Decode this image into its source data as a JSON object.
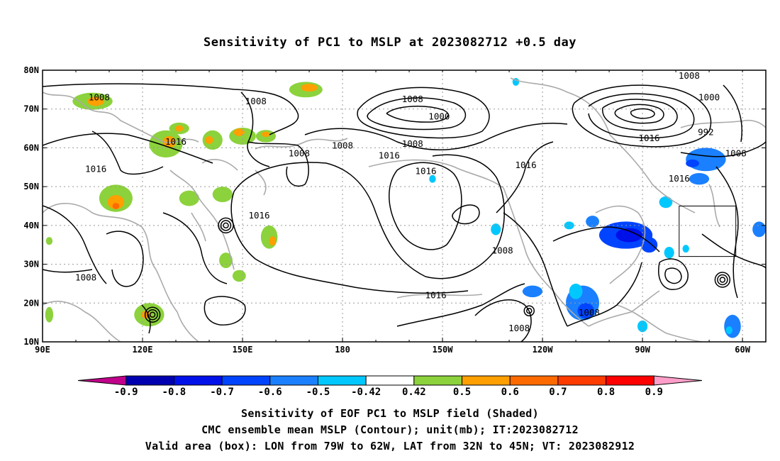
{
  "title": "Sensitivity of PC1 to MSLP at 2023082712 +0.5 day",
  "map": {
    "projection": "cylindrical equidistant",
    "lon_range": [
      90,
      307
    ],
    "lat_range": [
      10,
      80
    ],
    "gridlines": "dotted",
    "lat_ticks": [
      {
        "value": 80,
        "label": "80N"
      },
      {
        "value": 70,
        "label": "70N"
      },
      {
        "value": 60,
        "label": "60N"
      },
      {
        "value": 50,
        "label": "50N"
      },
      {
        "value": 40,
        "label": "40N"
      },
      {
        "value": 30,
        "label": "30N"
      },
      {
        "value": 20,
        "label": "20N"
      },
      {
        "value": 10,
        "label": "10N"
      }
    ],
    "lon_ticks": [
      {
        "value": 90,
        "label": "90E"
      },
      {
        "value": 120,
        "label": "120E"
      },
      {
        "value": 150,
        "label": "150E"
      },
      {
        "value": 180,
        "label": "180"
      },
      {
        "value": 210,
        "label": "150W"
      },
      {
        "value": 240,
        "label": "120W"
      },
      {
        "value": 270,
        "label": "90W"
      },
      {
        "value": 300,
        "label": "60W"
      }
    ],
    "valid_box": {
      "lon_min": 281,
      "lon_max": 298,
      "lat_min": 32,
      "lat_max": 45
    },
    "contour_labels": [
      {
        "text": "1008",
        "lon": 107,
        "lat": 73
      },
      {
        "text": "1008",
        "lon": 154,
        "lat": 72
      },
      {
        "text": "1008",
        "lon": 201,
        "lat": 72.5
      },
      {
        "text": "1008",
        "lon": 284,
        "lat": 78.5
      },
      {
        "text": "1000",
        "lon": 209,
        "lat": 68
      },
      {
        "text": "1000",
        "lon": 290,
        "lat": 73
      },
      {
        "text": "992",
        "lon": 289,
        "lat": 64
      },
      {
        "text": "1016",
        "lon": 272,
        "lat": 62.5
      },
      {
        "text": "1016",
        "lon": 130,
        "lat": 61.5
      },
      {
        "text": "1008",
        "lon": 180,
        "lat": 60.5
      },
      {
        "text": "1008",
        "lon": 167,
        "lat": 58.5
      },
      {
        "text": "1008",
        "lon": 201,
        "lat": 61
      },
      {
        "text": "1016",
        "lon": 194,
        "lat": 58
      },
      {
        "text": "1008",
        "lon": 298,
        "lat": 58.5
      },
      {
        "text": "1016",
        "lon": 235,
        "lat": 55.5
      },
      {
        "text": "1016",
        "lon": 205,
        "lat": 54
      },
      {
        "text": "1016",
        "lon": 281,
        "lat": 52
      },
      {
        "text": "1016",
        "lon": 106,
        "lat": 54.5
      },
      {
        "text": "1016",
        "lon": 155,
        "lat": 42.5
      },
      {
        "text": "1008",
        "lon": 228,
        "lat": 33.5
      },
      {
        "text": "1008",
        "lon": 103,
        "lat": 26.5
      },
      {
        "text": "1016",
        "lon": 208,
        "lat": 22
      },
      {
        "text": "1008",
        "lon": 233,
        "lat": 13.5
      },
      {
        "text": "1008",
        "lon": 254,
        "lat": 17.5
      }
    ]
  },
  "colorbar": {
    "labels": [
      "-0.9",
      "-0.8",
      "-0.7",
      "-0.6",
      "-0.5",
      "-0.42",
      "0.42",
      "0.5",
      "0.6",
      "0.7",
      "0.8",
      "0.9"
    ],
    "colors": [
      "#c0008a",
      "#0000b0",
      "#0010e8",
      "#0044ff",
      "#1a80ff",
      "#00c8ff",
      "#ffffff",
      "#8cd23c",
      "#ff9f00",
      "#ff6a00",
      "#ff3c00",
      "#ff0000",
      "#ff9ec9"
    ]
  },
  "captions": [
    "Sensitivity of EOF PC1 to MSLP field (Shaded)",
    "CMC ensemble mean MSLP (Contour); unit(mb); IT:2023082712",
    "Valid area (box): LON from 79W to 62W, LAT from 32N to 45N; VT: 2023082912"
  ]
}
